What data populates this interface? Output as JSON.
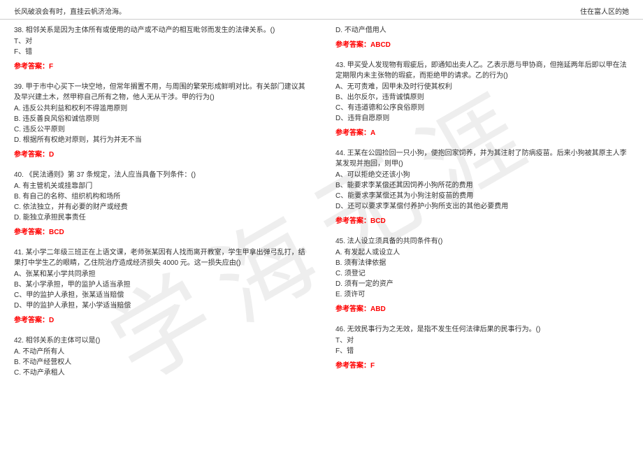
{
  "header": {
    "left": "长风破浪会有时，直挂云帆济沧海。",
    "right": "住在富人区的她"
  },
  "watermark": "学海无涯",
  "left_column": {
    "q38": {
      "text": "38. 相邻关系是因为主体所有或使用的动产或不动产的相互毗邻而发生的法律关系。()",
      "opt_t": "T、对",
      "opt_f": "F、错",
      "answer": "参考答案：F"
    },
    "q39": {
      "text": "39. 甲于市中心买下一块空地，但常年搁置不用，与周围的繁荣形成鲜明对比。有关部门建议其及早兴建土木，然甲称自己所有之物，他人无从干涉。甲的行为()",
      "opt_a": "A. 违反公共利益和权利不得滥用原则",
      "opt_b": "B. 违反善良风俗和诚信原则",
      "opt_c": "C. 违反公平原则",
      "opt_d": "D. 根据所有权绝对原则，其行为并无不当",
      "answer": "参考答案：D"
    },
    "q40": {
      "text": "40. 《民法通则》第 37 条规定，法人应当具备下列条件：()",
      "opt_a": "A. 有主管机关或挂靠部门",
      "opt_b": "B. 有自己的名称、组织机构和场所",
      "opt_c": "C. 依法独立，并有必要的财产或经费",
      "opt_d": "D. 能独立承担民事责任",
      "answer": "参考答案：BCD"
    },
    "q41": {
      "text": "41. 某小学二年级三班正在上语文课，老师张某因有人找而离开教室，学生甲拿出弹弓乱打，结果打中学生乙的眼睛，乙住院治疗造成经济损失 4000 元。这一损失应由()",
      "opt_a": "A、张某和某小学共同承担",
      "opt_b": "B、某小学承担，甲的监护人适当承担",
      "opt_c": "C、甲的监护人承担，张某适当赔偿",
      "opt_d": "D、甲的监护人承担，某小学适当赔偿",
      "answer": "参考答案：D"
    },
    "q42": {
      "text": "42. 相邻关系的主体可以是()",
      "opt_a": "A. 不动产所有人",
      "opt_b": "B. 不动产经营权人",
      "opt_c": "C. 不动产承租人"
    }
  },
  "right_column": {
    "q42d": {
      "opt_d": "D. 不动产借用人",
      "answer": "参考答案：ABCD"
    },
    "q43": {
      "text": "43. 甲买受人发现物有瑕疵后，即通知出卖人乙。乙表示愿与甲协商，但拖延两年后即以甲在法定期限内未主张物的瑕疵，而拒绝甲的请求。乙的行为()",
      "opt_a": "A、无可责难，因甲未及时行使其权利",
      "opt_b": "B、出尔反尔，违背诚慎原则",
      "opt_c": "C、有违道德和公序良俗原则",
      "opt_d": "D、违背自愿原则",
      "answer": "参考答案：A"
    },
    "q44": {
      "text": "44. 王某在公园捡回一只小狗，便抱回家饲养，并为其注射了防病疫苗。后来小狗被其原主人李某发现并抱回，则甲()",
      "opt_a": "A、可以拒绝交还该小狗",
      "opt_b": "B、能要求李某偿还其因饲养小狗所花的费用",
      "opt_c": "C、能要求李某偿还其为小狗注射疫苗的费用",
      "opt_d": "D、还可以要求李某偿付养护小狗所支出的其他必要费用",
      "answer": "参考答案：BCD"
    },
    "q45": {
      "text": "45. 法人设立须具备的共同条件有()",
      "opt_a": "A. 有发起人或设立人",
      "opt_b": "B. 须有法律依据",
      "opt_c": "C. 须登记",
      "opt_d": "D. 须有一定的资产",
      "opt_e": "E. 须许可",
      "answer": "参考答案：ABD"
    },
    "q46": {
      "text": "46. 无效民事行为之无效，是指不发生任何法律后果的民事行为。()",
      "opt_t": "T、对",
      "opt_f": "F、错",
      "answer": "参考答案：F"
    }
  },
  "colors": {
    "text": "#333333",
    "answer": "#ff0000",
    "border": "#cccccc",
    "watermark": "rgba(200,200,200,0.3)"
  }
}
